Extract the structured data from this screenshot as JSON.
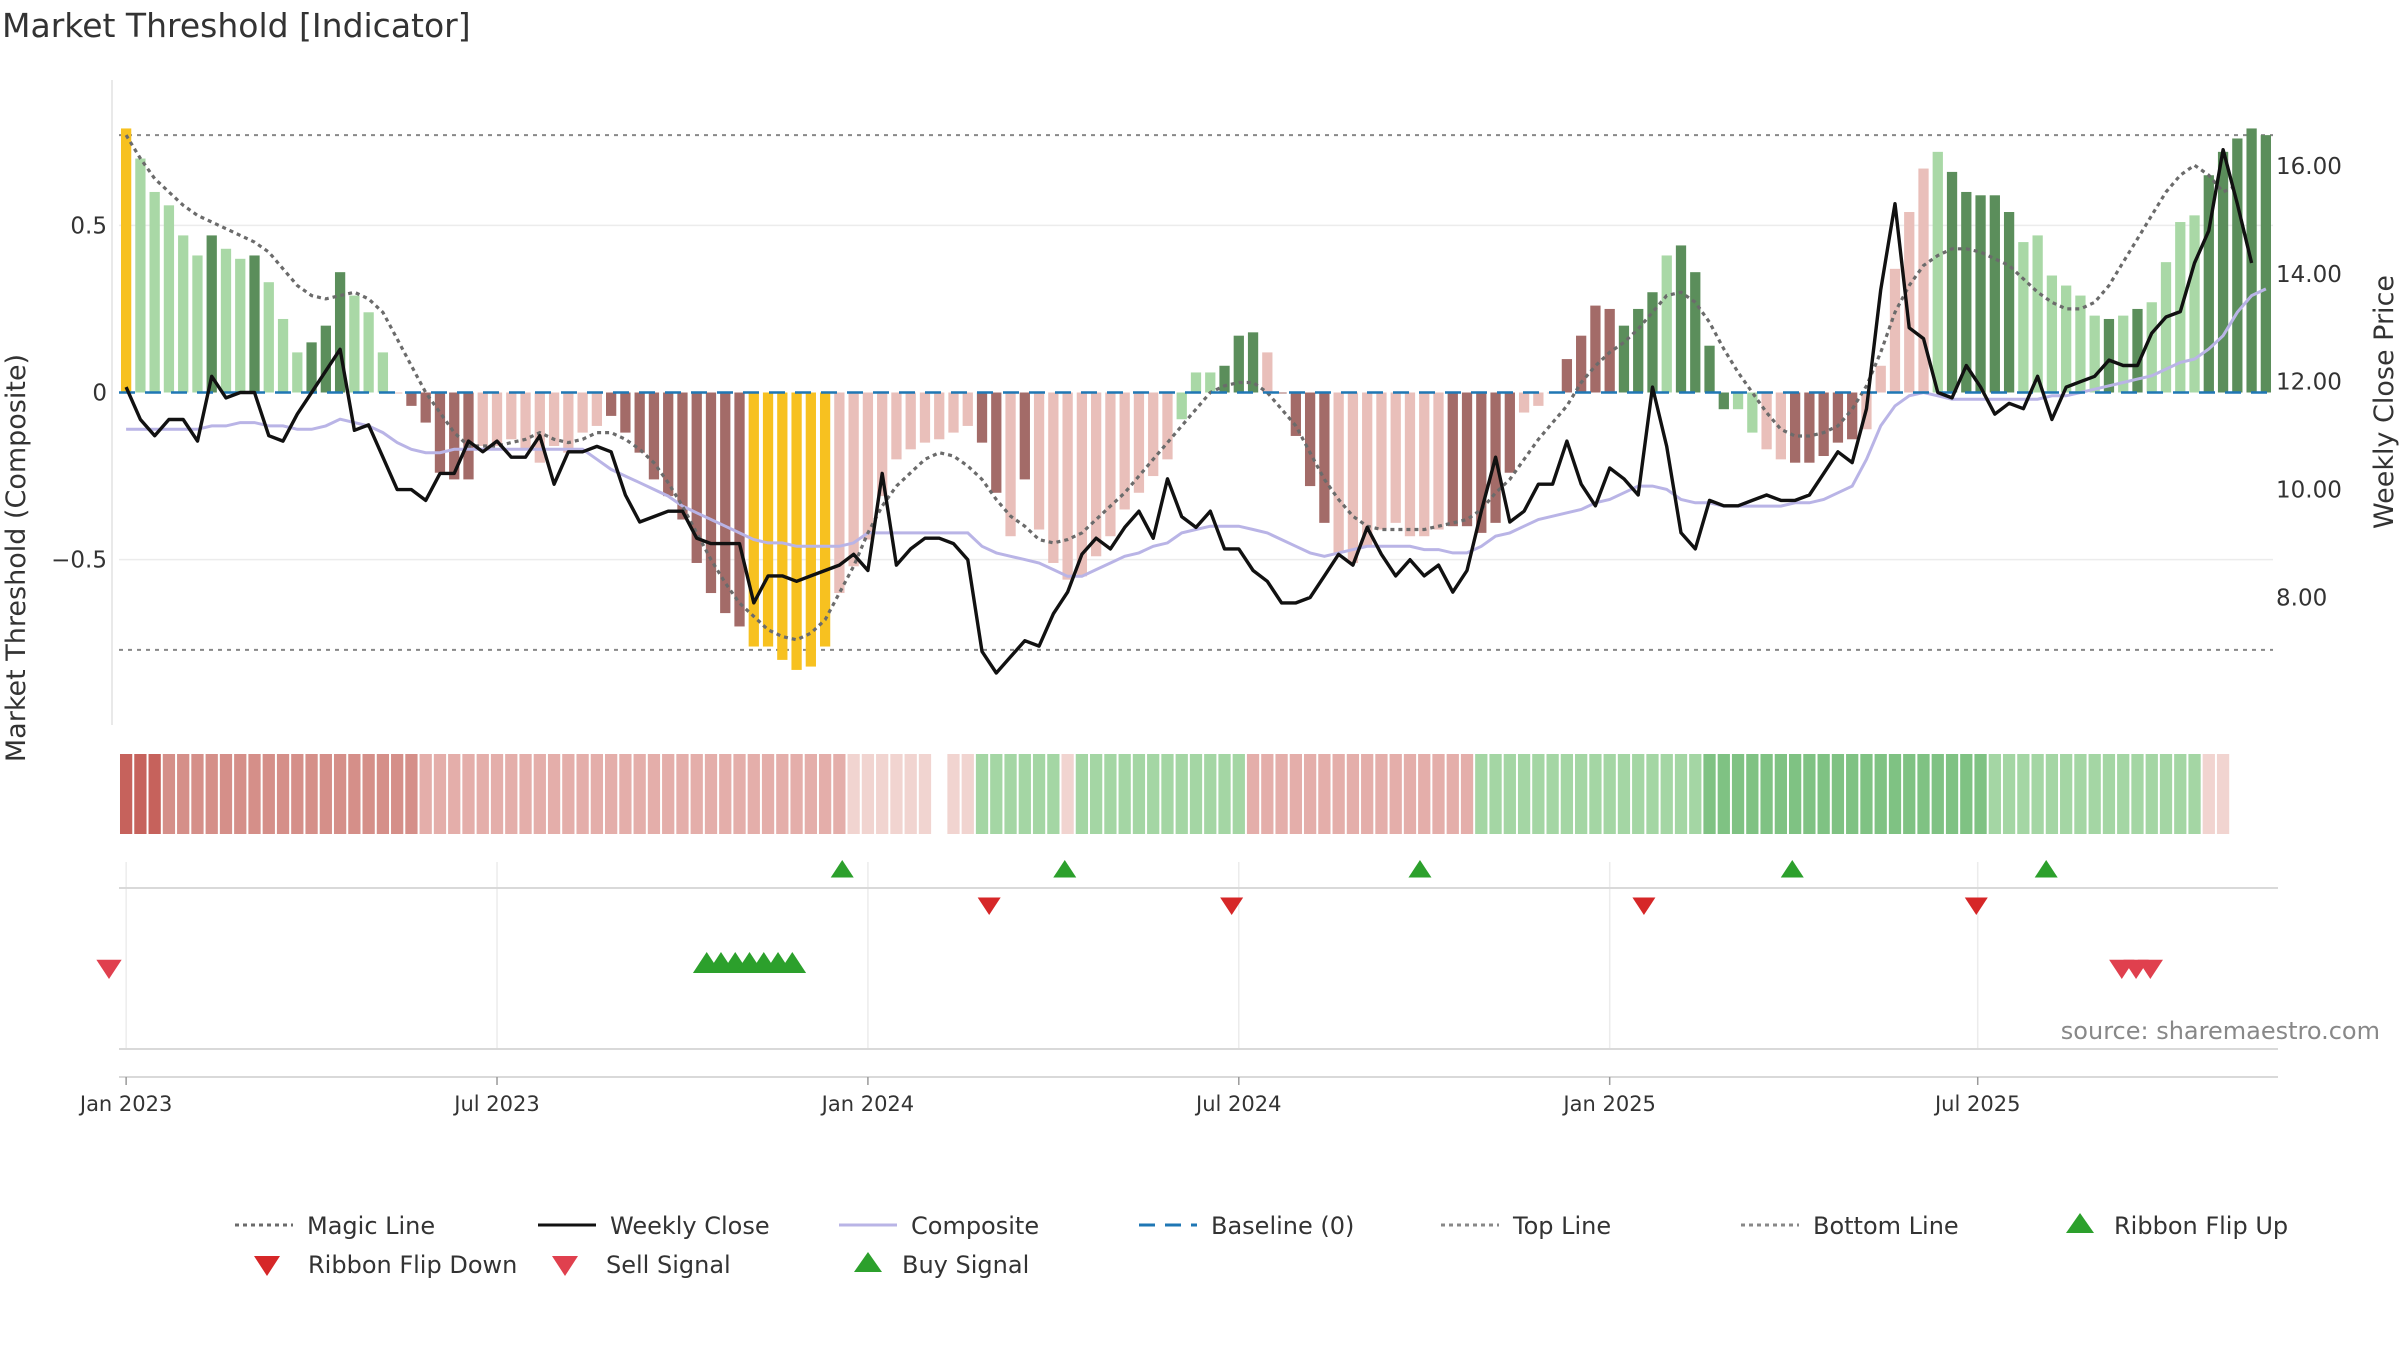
{
  "chart_data": {
    "type": "bar",
    "title": "Market Threshold [Indicator]",
    "ylabel_left": "Market Threshold (Composite)",
    "ylabel_right": "Weekly Close Price",
    "source": "source: sharemaestro.com",
    "x_ticks": [
      "Jan 2023",
      "Jul 2023",
      "Jan 2024",
      "Jul 2024",
      "Jan 2025",
      "Jul 2025"
    ],
    "x_tick_weeks": [
      0.5,
      26.5,
      52.5,
      78.5,
      104.5,
      130.3
    ],
    "left_ticks": [
      {
        "v": 0.5,
        "label": "0.5"
      },
      {
        "v": 0,
        "label": "0"
      },
      {
        "v": -0.5,
        "label": "−0.5"
      }
    ],
    "right_ticks": [
      {
        "v": 16,
        "label": "16.00"
      },
      {
        "v": 14,
        "label": "14.00"
      },
      {
        "v": 12,
        "label": "12.00"
      },
      {
        "v": 10,
        "label": "10.00"
      },
      {
        "v": 8,
        "label": "8.00"
      }
    ],
    "ylim_left": [
      -0.92,
      0.92
    ],
    "ylim_right": [
      6.1,
      17.5
    ],
    "top_line": 0.77,
    "bottom_line": -0.77,
    "grid": true,
    "legend_position": "bottom",
    "colors": {
      "strong_pos": "#5b8e5b",
      "weak_pos": "#a9d8a6",
      "strong_neg": "#a36b68",
      "weak_neg": "#e9bfba",
      "extreme": "#f7c120",
      "weekly_close": "#111111",
      "composite": "#b9b4e6",
      "magic_line": "#6b6b6b",
      "baseline": "#1f77b4",
      "flip_up": "#2ca02c",
      "flip_down": "#d62728",
      "buy": "#2ca02c",
      "sell": "#e0404e"
    },
    "legend": [
      {
        "label": "Magic Line",
        "kind": "dotted",
        "color": "#6b6b6b"
      },
      {
        "label": "Weekly Close",
        "kind": "solid",
        "color": "#111111"
      },
      {
        "label": "Composite",
        "kind": "solid",
        "color": "#b9b4e6"
      },
      {
        "label": "Baseline (0)",
        "kind": "dashed",
        "color": "#1f77b4"
      },
      {
        "label": "Top Line",
        "kind": "dotted",
        "color": "#888888"
      },
      {
        "label": "Bottom Line",
        "kind": "dotted",
        "color": "#888888"
      },
      {
        "label": "Ribbon Flip Up",
        "kind": "tri-up",
        "color": "#2ca02c"
      },
      {
        "label": "Ribbon Flip Down",
        "kind": "tri-down",
        "color": "#d62728"
      },
      {
        "label": "Sell Signal",
        "kind": "tri-down",
        "color": "#e0404e"
      },
      {
        "label": "Buy Signal",
        "kind": "tri-up",
        "color": "#2ca02c"
      }
    ],
    "threshold_bars": [
      0.79,
      0.7,
      0.6,
      0.56,
      0.47,
      0.41,
      0.47,
      0.43,
      0.4,
      0.41,
      0.33,
      0.22,
      0.12,
      0.15,
      0.2,
      0.36,
      0.29,
      0.24,
      0.12,
      0,
      -0.04,
      -0.09,
      -0.24,
      -0.26,
      -0.26,
      -0.16,
      -0.16,
      -0.14,
      -0.17,
      -0.21,
      -0.16,
      -0.18,
      -0.12,
      -0.1,
      -0.07,
      -0.12,
      -0.18,
      -0.26,
      -0.31,
      -0.38,
      -0.51,
      -0.6,
      -0.66,
      -0.7,
      -0.76,
      -0.76,
      -0.8,
      -0.83,
      -0.82,
      -0.76,
      -0.6,
      -0.52,
      -0.44,
      -0.31,
      -0.2,
      -0.17,
      -0.15,
      -0.14,
      -0.12,
      -0.1,
      -0.15,
      -0.3,
      -0.43,
      -0.26,
      -0.41,
      -0.51,
      -0.56,
      -0.55,
      -0.49,
      -0.43,
      -0.35,
      -0.3,
      -0.25,
      -0.2,
      -0.08,
      0.06,
      0.06,
      0.08,
      0.17,
      0.18,
      0.12,
      0,
      -0.13,
      -0.28,
      -0.39,
      -0.48,
      -0.51,
      -0.46,
      -0.41,
      -0.39,
      -0.43,
      -0.43,
      -0.41,
      -0.4,
      -0.4,
      -0.42,
      -0.39,
      -0.24,
      -0.06,
      -0.04,
      0,
      0.1,
      0.17,
      0.26,
      0.25,
      0.2,
      0.25,
      0.3,
      0.41,
      0.44,
      0.36,
      0.14,
      -0.05,
      -0.05,
      -0.12,
      -0.17,
      -0.2,
      -0.21,
      -0.21,
      -0.19,
      -0.15,
      -0.14,
      -0.11,
      0.08,
      0.37,
      0.54,
      0.67,
      0.72,
      0.66,
      0.6,
      0.59,
      0.59,
      0.54,
      0.45,
      0.47,
      0.35,
      0.32,
      0.29,
      0.23,
      0.22,
      0.23,
      0.25,
      0.27,
      0.39,
      0.51,
      0.53,
      0.65,
      0.72,
      0.76,
      0.79,
      0.77
    ],
    "bar_tone": "YSSSSSPSSPSSSPPPSSSZNNNNNWWWWWWWWWNNNNNNNNNNYYYYYYWWWWWWWWWWNNWNWWWWWWWWWWSSSPPPZNNNNWWWWWWWWNNNNNWWWNNNNPPPSPPPPSSWWNNNNNWWWWWSPPPPPSSSSSSPSPSSSSPPPPPPPYYY",
    "weekly_close": [
      11.9,
      11.3,
      11,
      11.3,
      11.3,
      10.9,
      12.1,
      11.7,
      11.8,
      11.8,
      11,
      10.9,
      11.4,
      11.8,
      12.2,
      12.6,
      11.1,
      11.2,
      10.6,
      10,
      10,
      9.8,
      10.3,
      10.3,
      10.9,
      10.7,
      10.9,
      10.6,
      10.6,
      11,
      10.1,
      10.7,
      10.7,
      10.8,
      10.7,
      9.9,
      9.4,
      9.5,
      9.6,
      9.6,
      9.1,
      9,
      9,
      9,
      7.9,
      8.4,
      8.4,
      8.3,
      8.4,
      8.5,
      8.6,
      8.8,
      8.5,
      10.3,
      8.6,
      8.9,
      9.1,
      9.1,
      9,
      8.7,
      7,
      6.6,
      6.9,
      7.2,
      7.1,
      7.7,
      8.1,
      8.8,
      9.1,
      8.9,
      9.3,
      9.6,
      9.1,
      10.2,
      9.5,
      9.3,
      9.6,
      8.9,
      8.9,
      8.5,
      8.3,
      7.9,
      7.9,
      8,
      8.4,
      8.8,
      8.6,
      9.3,
      8.8,
      8.4,
      8.7,
      8.4,
      8.6,
      8.1,
      8.5,
      9.6,
      10.6,
      9.4,
      9.6,
      10.1,
      10.1,
      10.9,
      10.1,
      9.7,
      10.4,
      10.2,
      9.9,
      11.9,
      10.8,
      9.2,
      8.9,
      9.8,
      9.7,
      9.7,
      9.8,
      9.9,
      9.8,
      9.8,
      9.9,
      10.3,
      10.7,
      10.5,
      11.5,
      13.7,
      15.3,
      13,
      12.8,
      11.8,
      11.7,
      12.3,
      11.9,
      11.4,
      11.6,
      11.5,
      12.1,
      11.3,
      11.9,
      12,
      12.1,
      12.4,
      12.3,
      12.3,
      12.9,
      13.2,
      13.3,
      14.2,
      14.8,
      16.3,
      15.3,
      14.2
    ],
    "composite": [
      -0.11,
      -0.11,
      -0.11,
      -0.11,
      -0.11,
      -0.11,
      -0.1,
      -0.1,
      -0.09,
      -0.09,
      -0.1,
      -0.1,
      -0.11,
      -0.11,
      -0.1,
      -0.08,
      -0.09,
      -0.1,
      -0.12,
      -0.15,
      -0.17,
      -0.18,
      -0.18,
      -0.17,
      -0.17,
      -0.17,
      -0.17,
      -0.17,
      -0.17,
      -0.17,
      -0.17,
      -0.17,
      -0.17,
      -0.2,
      -0.23,
      -0.25,
      -0.27,
      -0.29,
      -0.31,
      -0.34,
      -0.36,
      -0.38,
      -0.4,
      -0.42,
      -0.44,
      -0.45,
      -0.45,
      -0.46,
      -0.46,
      -0.46,
      -0.46,
      -0.45,
      -0.42,
      -0.42,
      -0.42,
      -0.42,
      -0.42,
      -0.42,
      -0.42,
      -0.42,
      -0.46,
      -0.48,
      -0.49,
      -0.5,
      -0.51,
      -0.53,
      -0.55,
      -0.55,
      -0.53,
      -0.51,
      -0.49,
      -0.48,
      -0.46,
      -0.45,
      -0.42,
      -0.41,
      -0.4,
      -0.4,
      -0.4,
      -0.41,
      -0.42,
      -0.44,
      -0.46,
      -0.48,
      -0.49,
      -0.48,
      -0.47,
      -0.46,
      -0.46,
      -0.46,
      -0.46,
      -0.47,
      -0.47,
      -0.48,
      -0.48,
      -0.46,
      -0.43,
      -0.42,
      -0.4,
      -0.38,
      -0.37,
      -0.36,
      -0.35,
      -0.33,
      -0.32,
      -0.3,
      -0.28,
      -0.28,
      -0.29,
      -0.32,
      -0.33,
      -0.33,
      -0.34,
      -0.34,
      -0.34,
      -0.34,
      -0.34,
      -0.33,
      -0.33,
      -0.32,
      -0.3,
      -0.28,
      -0.2,
      -0.1,
      -0.04,
      -0.01,
      0,
      -0.01,
      -0.02,
      -0.02,
      -0.02,
      -0.02,
      -0.02,
      -0.02,
      -0.02,
      -0.01,
      -0.01,
      0,
      0.01,
      0.02,
      0.03,
      0.04,
      0.05,
      0.07,
      0.09,
      0.1,
      0.13,
      0.17,
      0.24,
      0.29,
      0.31
    ],
    "magic_line": [
      0.77,
      0.7,
      0.64,
      0.6,
      0.56,
      0.53,
      0.51,
      0.49,
      0.47,
      0.45,
      0.42,
      0.37,
      0.32,
      0.29,
      0.28,
      0.29,
      0.3,
      0.28,
      0.24,
      0.16,
      0.08,
      0,
      -0.06,
      -0.12,
      -0.16,
      -0.16,
      -0.16,
      -0.15,
      -0.14,
      -0.12,
      -0.14,
      -0.15,
      -0.14,
      -0.12,
      -0.12,
      -0.14,
      -0.17,
      -0.21,
      -0.27,
      -0.34,
      -0.42,
      -0.5,
      -0.57,
      -0.63,
      -0.67,
      -0.71,
      -0.73,
      -0.74,
      -0.72,
      -0.68,
      -0.6,
      -0.52,
      -0.42,
      -0.34,
      -0.28,
      -0.24,
      -0.2,
      -0.18,
      -0.19,
      -0.22,
      -0.26,
      -0.32,
      -0.37,
      -0.4,
      -0.44,
      -0.45,
      -0.44,
      -0.42,
      -0.38,
      -0.34,
      -0.3,
      -0.25,
      -0.2,
      -0.15,
      -0.1,
      -0.05,
      0,
      0.02,
      0.03,
      0.03,
      0,
      -0.05,
      -0.1,
      -0.18,
      -0.26,
      -0.32,
      -0.37,
      -0.4,
      -0.41,
      -0.41,
      -0.41,
      -0.41,
      -0.4,
      -0.39,
      -0.38,
      -0.35,
      -0.3,
      -0.26,
      -0.2,
      -0.14,
      -0.09,
      -0.04,
      0.03,
      0.08,
      0.12,
      0.15,
      0.19,
      0.24,
      0.29,
      0.3,
      0.27,
      0.21,
      0.13,
      0.06,
      0,
      -0.06,
      -0.11,
      -0.13,
      -0.13,
      -0.12,
      -0.1,
      -0.05,
      0.02,
      0.12,
      0.24,
      0.32,
      0.38,
      0.41,
      0.43,
      0.43,
      0.42,
      0.4,
      0.38,
      0.34,
      0.3,
      0.27,
      0.25,
      0.25,
      0.27,
      0.32,
      0.39,
      0.46,
      0.53,
      0.6,
      0.65,
      0.68,
      0.65,
      0.6,
      0.62
    ],
    "ribbon_tone": "JJJIIIIIIIIIIIIIIIIIIHHHHHHHHHHHHHHHHHHHHHHHHHHHHHHAAAAAA-AABBBBBBABBBBBBBBBBBBHHHHHHHHHHHHHHHHBBBBBBBBBBBBBBBBGGGGGGGGGGGGGGGGGGGGBBBBBBBBBBBBBBBAA",
    "ribbon_flip_up_weeks": [
      50.7,
      66.3,
      91.2,
      117.3,
      135.1
    ],
    "ribbon_flip_down_weeks": [
      61,
      78,
      106.9,
      130.2
    ],
    "buy_signal_weeks": [
      41.2,
      42.2,
      43.2,
      44.2,
      45.2,
      46.2,
      47.2
    ],
    "sell_signal_weeks": [
      -0.7,
      140.4,
      141.4,
      142.4
    ]
  }
}
